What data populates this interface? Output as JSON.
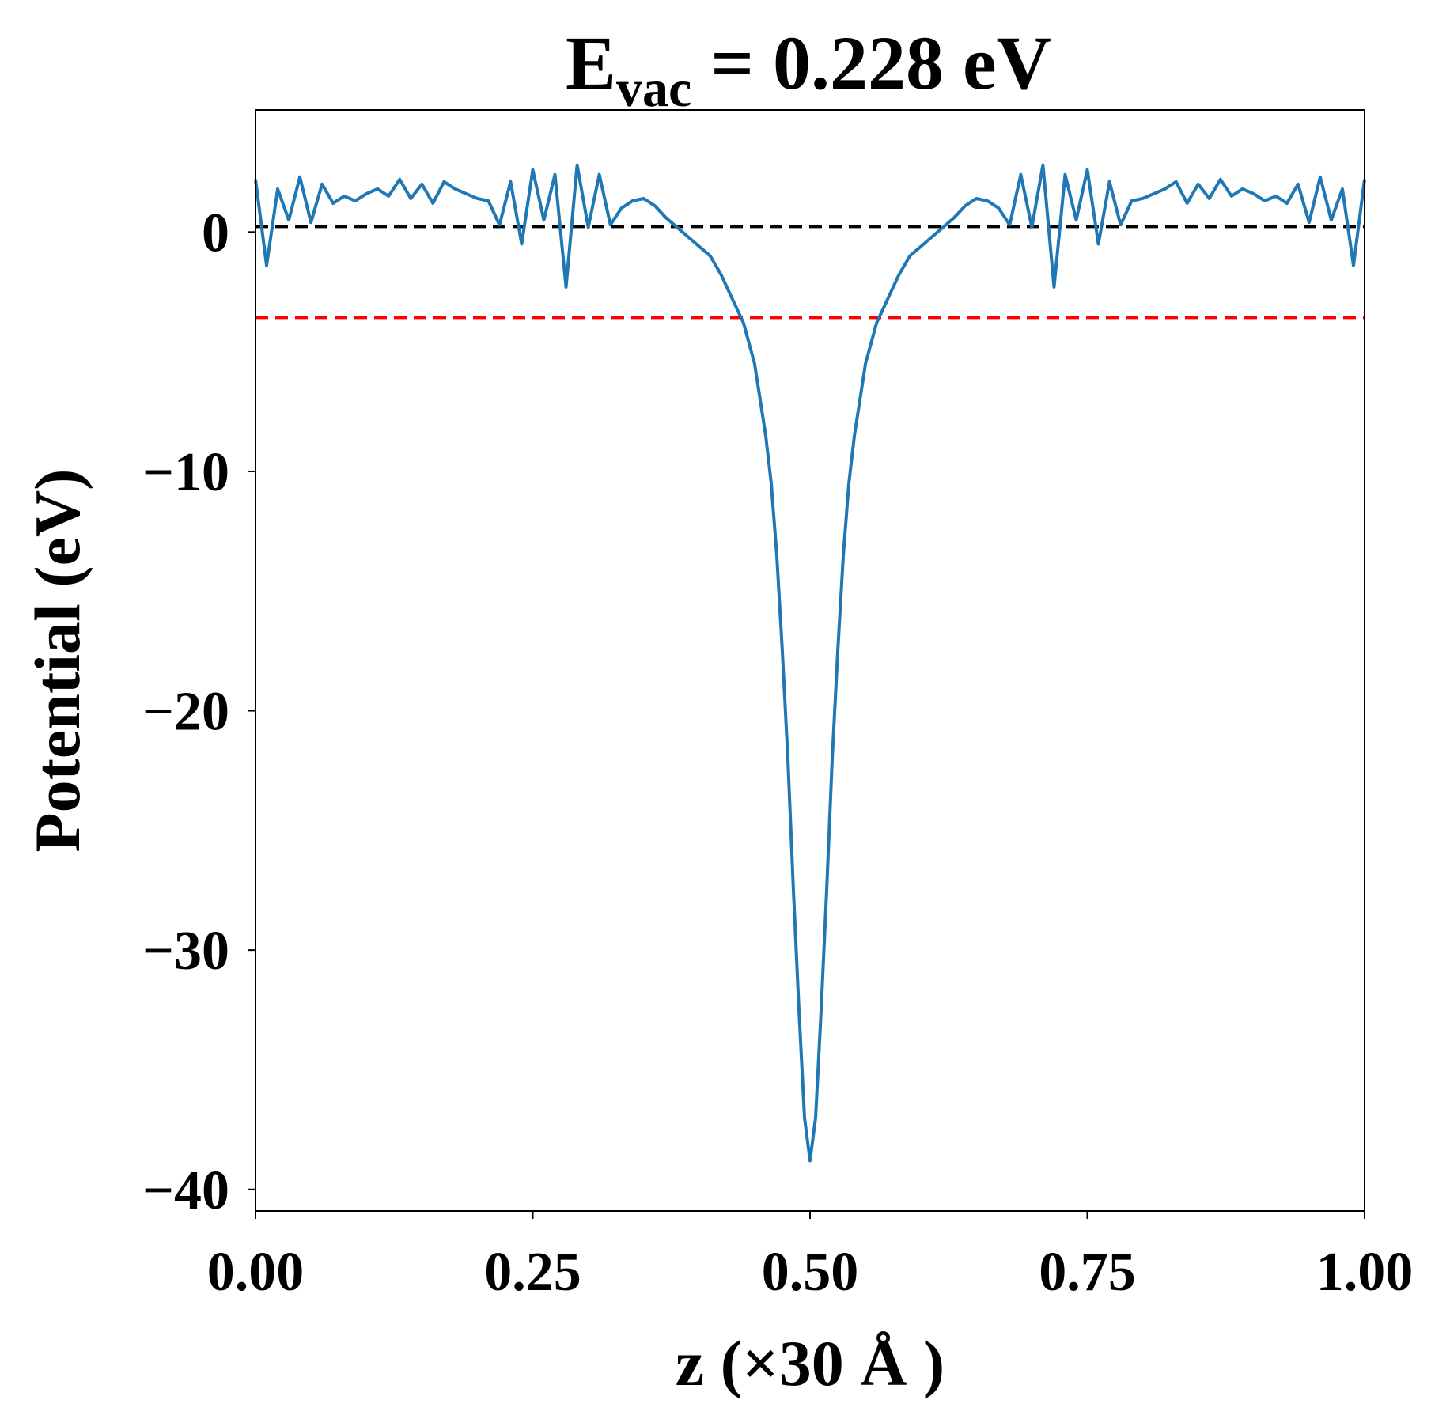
{
  "chart_data": {
    "type": "line",
    "title": {
      "main": "E",
      "sub": "vac",
      "rest": "= 0.228 eV"
    },
    "xlabel": "z (×30 Å )",
    "ylabel": "Potential (eV)",
    "xlim": [
      0,
      1
    ],
    "ylim": [
      -40.9,
      5.1
    ],
    "xticks": [
      {
        "value": 0,
        "label": "0.00"
      },
      {
        "value": 0.25,
        "label": "0.25"
      },
      {
        "value": 0.5,
        "label": "0.50"
      },
      {
        "value": 0.75,
        "label": "0.75"
      },
      {
        "value": 1,
        "label": "1.00"
      }
    ],
    "yticks": [
      {
        "value": -40,
        "label": "−40"
      },
      {
        "value": -30,
        "label": "−30"
      },
      {
        "value": -20,
        "label": "−20"
      },
      {
        "value": -10,
        "label": "−10"
      },
      0
    ],
    "hlines": [
      {
        "value": 0.228,
        "color": "#000000"
      },
      {
        "value": -3.57,
        "color": "#ff0000"
      }
    ],
    "x": [
      0,
      0.01,
      0.02,
      0.03,
      0.04,
      0.05,
      0.06,
      0.07,
      0.08,
      0.09,
      0.1,
      0.11,
      0.12,
      0.13,
      0.14,
      0.15,
      0.16,
      0.17,
      0.18,
      0.19,
      0.2,
      0.21,
      0.22,
      0.23,
      0.24,
      0.25,
      0.26,
      0.27,
      0.28,
      0.29,
      0.3,
      0.31,
      0.32,
      0.33,
      0.34,
      0.35,
      0.36,
      0.37,
      0.38,
      0.39,
      0.4,
      0.41,
      0.42,
      0.43,
      0.44,
      0.45,
      0.46,
      0.465,
      0.47,
      0.475,
      0.48,
      0.485,
      0.49,
      0.495,
      0.5,
      0.505,
      0.51,
      0.515,
      0.52,
      0.525,
      0.53,
      0.535,
      0.54,
      0.55,
      0.56,
      0.57,
      0.58,
      0.59,
      0.6,
      0.61,
      0.62,
      0.63,
      0.64,
      0.65,
      0.66,
      0.67,
      0.68,
      0.69,
      0.7,
      0.71,
      0.72,
      0.73,
      0.74,
      0.75,
      0.76,
      0.77,
      0.78,
      0.79,
      0.8,
      0.81,
      0.82,
      0.83,
      0.84,
      0.85,
      0.86,
      0.87,
      0.88,
      0.89,
      0.9,
      0.91,
      0.92,
      0.93,
      0.94,
      0.95,
      0.96,
      0.97,
      0.98,
      0.99,
      1
    ],
    "series": [
      {
        "color": "#1f77b4",
        "values": [
          2.2,
          -1.4,
          1.8,
          0.5,
          2.3,
          0.4,
          2.0,
          1.2,
          1.5,
          1.3,
          1.6,
          1.8,
          1.5,
          2.2,
          1.4,
          2.0,
          1.2,
          2.1,
          1.8,
          1.6,
          1.4,
          1.3,
          0.3,
          2.1,
          -0.5,
          2.6,
          0.5,
          2.4,
          -2.3,
          2.8,
          0.2,
          2.4,
          0.3,
          1.0,
          1.3,
          1.4,
          1.1,
          0.6,
          0.2,
          -0.2,
          -0.6,
          -1.0,
          -1.8,
          -2.8,
          -3.8,
          -5.5,
          -8.5,
          -10.5,
          -13.5,
          -17.5,
          -22,
          -27.5,
          -32.5,
          -37,
          -38.8,
          -37,
          -32.5,
          -27.5,
          -22,
          -17.5,
          -13.5,
          -10.5,
          -8.5,
          -5.5,
          -3.8,
          -2.8,
          -1.8,
          -1.0,
          -0.6,
          -0.2,
          0.2,
          0.6,
          1.1,
          1.4,
          1.3,
          1.0,
          0.3,
          2.4,
          0.2,
          2.8,
          -2.3,
          2.4,
          0.5,
          2.6,
          -0.5,
          2.1,
          0.3,
          1.3,
          1.4,
          1.6,
          1.8,
          2.1,
          1.2,
          2.0,
          1.4,
          2.2,
          1.5,
          1.8,
          1.6,
          1.3,
          1.5,
          1.2,
          2.0,
          0.4,
          2.3,
          0.5,
          1.8,
          -1.4,
          2.2
        ]
      }
    ]
  }
}
